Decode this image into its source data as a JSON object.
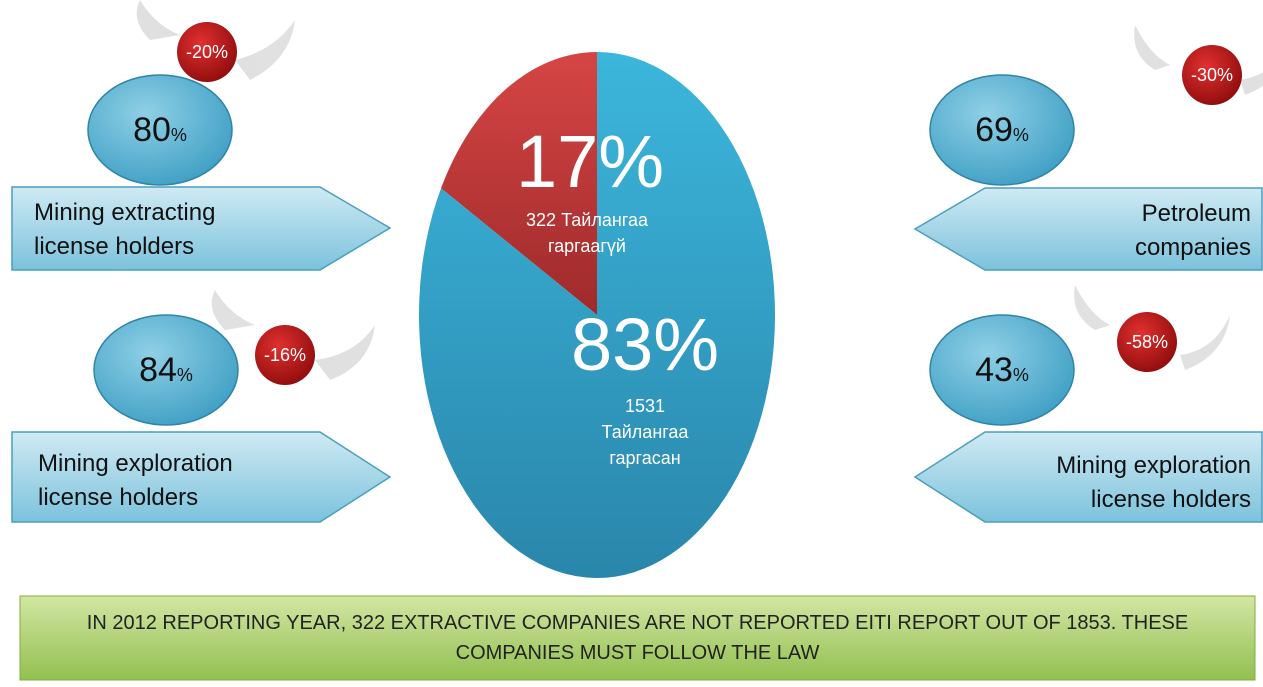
{
  "chart_data": {
    "type": "pie",
    "categories": [
      "322 Тайлангаа гаргаагүй",
      "1531 Тайлангаа гаргасан"
    ],
    "values": [
      17,
      83
    ],
    "value_labels": [
      "17%",
      "83%"
    ],
    "colors": [
      "#c73b3b",
      "#38a9d1"
    ]
  },
  "callouts": [
    {
      "percent": 80,
      "percent_unit": "%",
      "change": -20,
      "change_unit": "%",
      "label": "Mining extracting license holders"
    },
    {
      "percent": 84,
      "percent_unit": "%",
      "change": -16,
      "change_unit": "%",
      "label": "Mining exploration license holders"
    },
    {
      "percent": 69,
      "percent_unit": "%",
      "change": -30,
      "change_unit": "%",
      "label": "Petroleum companies"
    },
    {
      "percent": 43,
      "percent_unit": "%",
      "change": -58,
      "change_unit": "%",
      "label": "Mining exploration license holders"
    }
  ],
  "footer": "IN 2012 REPORTING YEAR, 322 EXTRACTIVE COMPANIES ARE NOT REPORTED EITI REPORT OUT OF 1853. THESE COMPANIES MUST FOLLOW THE LAW"
}
